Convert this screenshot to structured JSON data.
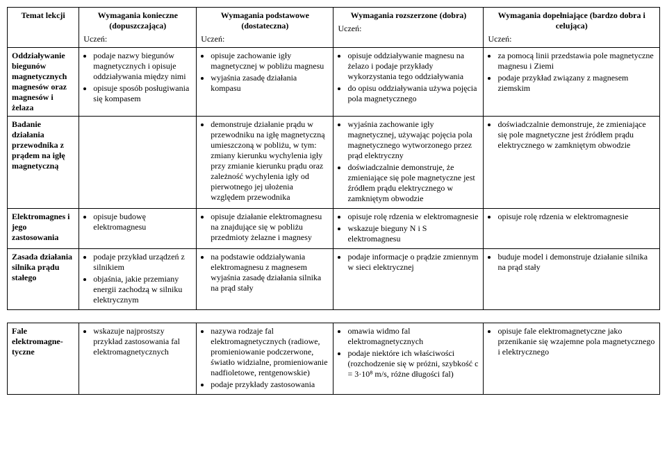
{
  "headers": {
    "topic": "Temat lekcji",
    "colA": {
      "title": "Wymagania konieczne (dopuszczająca)",
      "sub": "Uczeń:"
    },
    "colB": {
      "title": "Wymagania podstawowe (dostateczna)",
      "sub": "Uczeń:"
    },
    "colC": {
      "title": "Wymagania rozszerzone (dobra)",
      "sub": "Uczeń:"
    },
    "colD": {
      "title": "Wymagania dopełniające (bardzo dobra i celująca)",
      "sub": "Uczeń:"
    }
  },
  "row1": {
    "topic": "Oddziaływanie biegunów magnetycznych magnesów oraz magnesów i żelaza",
    "a1": "podaje nazwy biegunów magnetycznych i opisuje oddziaływania między nimi",
    "a2": "opisuje sposób posługiwania się kompasem",
    "b1": "opisuje zachowanie igły magnetycznej w pobliżu magnesu",
    "b2": "wyjaśnia zasadę działania kompasu",
    "c1": "opisuje oddziaływanie magnesu na żelazo i podaje przykłady wykorzystania tego oddziaływania",
    "c2": "do opisu oddziaływania używa pojęcia pola magnetycznego",
    "d1": "za pomocą linii przedstawia pole magnetyczne magnesu i Ziemi",
    "d2": "podaje przykład związany z magnesem ziemskim"
  },
  "row2": {
    "topic": "Badanie działania przewodnika z prądem na igłę magnetyczną",
    "b1": "demonstruje działanie prądu w przewodniku na igłę magnetyczną umieszczoną w pobliżu, w tym: zmiany kierunku wychylenia igły przy zmianie kierunku prądu oraz zależność wychylenia igły od pierwotnego jej ułożenia względem przewodnika",
    "c1": "wyjaśnia zachowanie igły magnetycznej, używając pojęcia pola magnetycznego wytworzonego przez prąd elektryczny",
    "c2": "doświadczalnie demonstruje, że zmieniające się pole magnetyczne jest źródłem prądu elektrycznego w zamkniętym obwodzie",
    "d1": "doświadczalnie demonstruje, że zmieniające się pole magnetyczne jest źródłem prądu elektrycznego w zamkniętym obwodzie"
  },
  "row3": {
    "topic": "Elektromagnes i jego zastosowania",
    "a1": "opisuje budowę elektromagnesu",
    "b1": "opisuje działanie elektromagnesu na znajdujące się w pobliżu przedmioty żelazne i magnesy",
    "c1": "opisuje rolę rdzenia w elektromagnesie",
    "c2": "wskazuje bieguny N i S elektromagnesu",
    "d1": "opisuje rolę rdzenia w elektromagnesie"
  },
  "row4": {
    "topic": "Zasada działania silnika prądu stałego",
    "a1": "podaje przykład urządzeń z silnikiem",
    "a2": "objaśnia, jakie przemiany energii zachodzą w silniku elektrycznym",
    "b1": "na podstawie oddziaływania elektromagnesu z magnesem wyjaśnia zasadę działania silnika na prąd stały",
    "c1": "podaje informacje o prądzie zmiennym w sieci elektrycznej",
    "d1": "buduje model i demonstruje działanie silnika na prąd stały"
  },
  "row5": {
    "topic": "Fale elektromagne-tyczne",
    "a1": "wskazuje najprostszy przykład zastosowania fal elektromagnetycznych",
    "b1": "nazywa rodzaje fal elektromagnetycznych (radiowe, promieniowanie podczerwone, światło widzialne, promieniowanie nadfioletowe, rentgenowskie)",
    "b2": "podaje przykłady zastosowania",
    "c1": "omawia widmo fal elektromagnetycznych",
    "c2": "podaje niektóre ich właściwości (rozchodzenie się w próżni, szybkość c = 3·10⁸ m/s, różne długości fal)",
    "d1": "opisuje fale elektromagnetyczne jako przenikanie się wzajemne pola magnetycznego i elektrycznego"
  }
}
